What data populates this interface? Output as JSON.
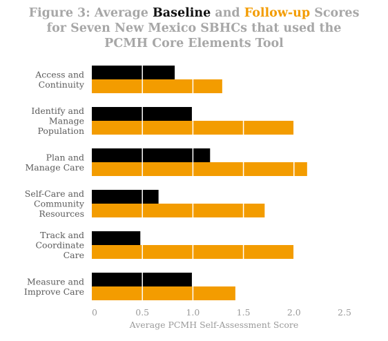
{
  "title": {
    "part1": "Figure 3: Average ",
    "baseline_word": "Baseline",
    "part2": " and ",
    "followup_word": "Follow-up",
    "part3": " Scores",
    "line2": "for Seven New Mexico SBHCs that used the",
    "line3": "PCMH Core Elements Tool"
  },
  "colors": {
    "baseline": "#000000",
    "followup": "#f39c00",
    "title_gray": "#a7a7a7"
  },
  "chart_data": {
    "type": "bar",
    "orientation": "horizontal",
    "categories": [
      [
        "Access and",
        "Continuity"
      ],
      [
        "Identify and",
        "Manage",
        "Population"
      ],
      [
        "Plan and",
        "Manage Care"
      ],
      [
        "Self-Care and",
        "Community",
        "Resources"
      ],
      [
        "Track and",
        "Coordinate",
        "Care"
      ],
      [
        "Measure and",
        "Improve Care"
      ]
    ],
    "series": [
      {
        "name": "Baseline",
        "color": "#000000",
        "values": [
          0.82,
          0.99,
          1.17,
          0.66,
          0.48,
          0.99
        ]
      },
      {
        "name": "Follow-up",
        "color": "#f39c00",
        "values": [
          1.29,
          2.0,
          2.13,
          1.71,
          2.0,
          1.42
        ]
      }
    ],
    "xlim": [
      0,
      2.5
    ],
    "xticks": [
      "0",
      "0.5",
      "1.0",
      "1.5",
      "2.0",
      "2.5"
    ],
    "xlabel": "Average PCMH Self-Assessment Score",
    "gridlines": "white vertical lines over bars",
    "legend": "none (series named in title)"
  }
}
